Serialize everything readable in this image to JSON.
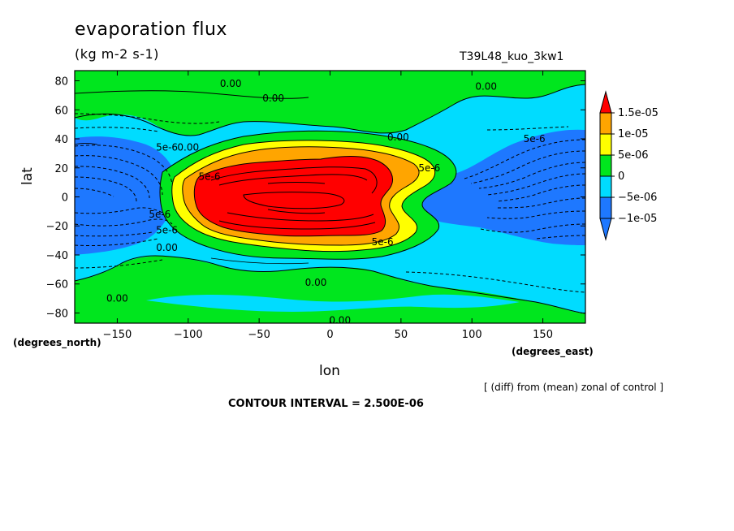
{
  "header": {
    "title": "evaporation flux",
    "units": "(kg m-2 s-1)",
    "run": "T39L48_kuo_3kw1"
  },
  "footer": {
    "xlabel": "lon",
    "ylabel": "lat",
    "y_units": "(degrees_north)",
    "x_units": "(degrees_east)",
    "note": "[ (diff) from (mean) zonal of control ]",
    "contour_interval": "CONTOUR INTERVAL = 2.500E-06"
  },
  "chart_data": {
    "type": "heatmap",
    "title": "evaporation flux",
    "xlabel": "lon",
    "ylabel": "lat",
    "xlim": [
      -180,
      180
    ],
    "ylim": [
      -87,
      87
    ],
    "x_ticks": [
      -150,
      -100,
      -50,
      0,
      50,
      100,
      150
    ],
    "x_tick_labels": [
      "−150",
      "−100",
      "−50",
      "0",
      "50",
      "100",
      "150"
    ],
    "y_ticks": [
      -80,
      -60,
      -40,
      -20,
      0,
      20,
      40,
      60,
      80
    ],
    "y_tick_labels": [
      "−80",
      "−60",
      "−40",
      "−20",
      "0",
      "20",
      "40",
      "60",
      "80"
    ],
    "colorbar": {
      "levels": [
        {
          "label": "-1e-05",
          "value": -1e-05,
          "color": "#1e78ff"
        },
        {
          "label": "-5e-06",
          "value": -5e-06,
          "color": "#00dcff"
        },
        {
          "label": "0",
          "value": 0,
          "color": "#00e61e"
        },
        {
          "label": "5e-06",
          "value": 5e-06,
          "color": "#ffff00"
        },
        {
          "label": "1e-05",
          "value": 1e-05,
          "color": "#ffa500"
        },
        {
          "label": "1.5e-05",
          "value": 1.5e-05,
          "color": "#ff0000"
        }
      ],
      "low_color": "#1e78ff",
      "high_color": "#ff0000",
      "tick_labels": [
        "1.5e-05",
        "1e-05",
        "5e-06",
        "0",
        "−5e-06",
        "−1e-05"
      ]
    },
    "contour_labels": [
      {
        "text": "0.00",
        "lon": -70,
        "lat": 78
      },
      {
        "text": "0.00",
        "lon": -40,
        "lat": 68
      },
      {
        "text": "0.00",
        "lon": 110,
        "lat": 76
      },
      {
        "text": "0.00",
        "lon": 48,
        "lat": 41
      },
      {
        "text": "0.00",
        "lon": -100,
        "lat": 34
      },
      {
        "text": "5e-6",
        "lon": -115,
        "lat": 34
      },
      {
        "text": "5e-6",
        "lon": 144,
        "lat": 40
      },
      {
        "text": "5e-6",
        "lon": 70,
        "lat": 20
      },
      {
        "text": "5e-6",
        "lon": -85,
        "lat": 14
      },
      {
        "text": "5e-6",
        "lon": -120,
        "lat": -12
      },
      {
        "text": "5e-6",
        "lon": -115,
        "lat": -23
      },
      {
        "text": "5e-6",
        "lon": 37,
        "lat": -31
      },
      {
        "text": "0.00",
        "lon": -115,
        "lat": -35
      },
      {
        "text": "0.00",
        "lon": -10,
        "lat": -59
      },
      {
        "text": "0.00",
        "lon": -150,
        "lat": -70
      },
      {
        "text": "0.00",
        "lon": 7,
        "lat": -85
      }
    ]
  }
}
